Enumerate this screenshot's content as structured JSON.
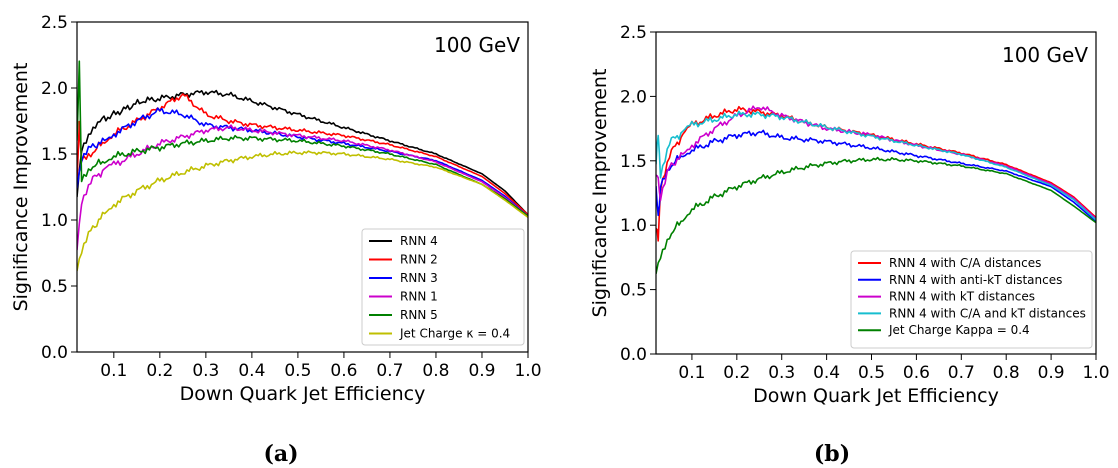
{
  "panels": [
    {
      "label": "(a)",
      "annotation": "100 GeV"
    },
    {
      "label": "(b)",
      "annotation": "100 GeV"
    }
  ],
  "chart_data": [
    {
      "type": "line",
      "annotation": "100 GeV",
      "xlabel": "Down Quark Jet Efficiency",
      "ylabel": "Significance Improvement",
      "xlim": [
        0.02,
        1.0
      ],
      "ylim": [
        0.0,
        2.5
      ],
      "xticks": [
        "0.1",
        "0.2",
        "0.3",
        "0.4",
        "0.5",
        "0.6",
        "0.7",
        "0.8",
        "0.9",
        "1.0"
      ],
      "yticks": [
        "0.0",
        "0.5",
        "1.0",
        "1.5",
        "2.0",
        "2.5"
      ],
      "grid": false,
      "legend_position": "lower-right",
      "series": [
        {
          "name": "RNN 4",
          "color": "#000000",
          "x": [
            0.02,
            0.03,
            0.05,
            0.07,
            0.1,
            0.13,
            0.16,
            0.2,
            0.25,
            0.3,
            0.35,
            0.4,
            0.5,
            0.6,
            0.7,
            0.8,
            0.9,
            0.95,
            1.0
          ],
          "y": [
            1.2,
            1.55,
            1.68,
            1.75,
            1.8,
            1.85,
            1.9,
            1.92,
            1.95,
            1.97,
            1.95,
            1.9,
            1.8,
            1.7,
            1.6,
            1.5,
            1.35,
            1.22,
            1.04
          ]
        },
        {
          "name": "RNN 2",
          "color": "#ff0000",
          "x": [
            0.02,
            0.025,
            0.03,
            0.05,
            0.08,
            0.1,
            0.15,
            0.2,
            0.25,
            0.3,
            0.35,
            0.4,
            0.5,
            0.6,
            0.7,
            0.8,
            0.9,
            0.95,
            1.0
          ],
          "y": [
            1.3,
            1.72,
            1.45,
            1.5,
            1.6,
            1.65,
            1.75,
            1.85,
            1.95,
            1.8,
            1.75,
            1.72,
            1.68,
            1.64,
            1.57,
            1.48,
            1.33,
            1.2,
            1.04
          ]
        },
        {
          "name": "RNN 3",
          "color": "#0000ff",
          "x": [
            0.02,
            0.03,
            0.05,
            0.08,
            0.1,
            0.15,
            0.2,
            0.25,
            0.3,
            0.4,
            0.5,
            0.6,
            0.7,
            0.8,
            0.9,
            0.95,
            1.0
          ],
          "y": [
            1.25,
            1.45,
            1.55,
            1.6,
            1.65,
            1.75,
            1.83,
            1.8,
            1.72,
            1.68,
            1.63,
            1.58,
            1.52,
            1.45,
            1.3,
            1.18,
            1.03
          ]
        },
        {
          "name": "RNN 1",
          "color": "#cc00cc",
          "x": [
            0.02,
            0.03,
            0.05,
            0.08,
            0.1,
            0.15,
            0.2,
            0.25,
            0.3,
            0.35,
            0.4,
            0.5,
            0.6,
            0.7,
            0.8,
            0.9,
            0.95,
            1.0
          ],
          "y": [
            0.8,
            1.15,
            1.3,
            1.38,
            1.42,
            1.5,
            1.58,
            1.63,
            1.68,
            1.7,
            1.68,
            1.64,
            1.6,
            1.53,
            1.44,
            1.29,
            1.17,
            1.03
          ]
        },
        {
          "name": "RNN 5",
          "color": "#008000",
          "x": [
            0.02,
            0.025,
            0.03,
            0.05,
            0.08,
            0.1,
            0.15,
            0.2,
            0.25,
            0.3,
            0.35,
            0.4,
            0.5,
            0.6,
            0.7,
            0.8,
            0.9,
            0.95,
            1.0
          ],
          "y": [
            1.6,
            2.18,
            1.3,
            1.4,
            1.45,
            1.48,
            1.52,
            1.55,
            1.58,
            1.6,
            1.62,
            1.62,
            1.6,
            1.56,
            1.5,
            1.42,
            1.27,
            1.16,
            1.03
          ]
        },
        {
          "name": "Jet Charge κ = 0.4",
          "color": "#bfbf00",
          "x": [
            0.02,
            0.03,
            0.05,
            0.08,
            0.1,
            0.15,
            0.2,
            0.25,
            0.3,
            0.35,
            0.4,
            0.45,
            0.5,
            0.55,
            0.6,
            0.7,
            0.8,
            0.9,
            0.95,
            1.0
          ],
          "y": [
            0.62,
            0.75,
            0.92,
            1.05,
            1.12,
            1.22,
            1.3,
            1.36,
            1.41,
            1.45,
            1.48,
            1.5,
            1.51,
            1.51,
            1.5,
            1.46,
            1.4,
            1.27,
            1.15,
            1.02
          ]
        }
      ]
    },
    {
      "type": "line",
      "annotation": "100 GeV",
      "xlabel": "Down Quark Jet Efficiency",
      "ylabel": "Significance Improvement",
      "xlim": [
        0.02,
        1.0
      ],
      "ylim": [
        0.0,
        2.5
      ],
      "xticks": [
        "0.1",
        "0.2",
        "0.3",
        "0.4",
        "0.5",
        "0.6",
        "0.7",
        "0.8",
        "0.9",
        "1.0"
      ],
      "yticks": [
        "0.0",
        "0.5",
        "1.0",
        "1.5",
        "2.0",
        "2.5"
      ],
      "grid": false,
      "legend_position": "lower-right",
      "series": [
        {
          "name": "RNN 4 with C/A distances",
          "color": "#ff0000",
          "x": [
            0.02,
            0.025,
            0.03,
            0.05,
            0.08,
            0.1,
            0.15,
            0.2,
            0.25,
            0.3,
            0.35,
            0.4,
            0.5,
            0.6,
            0.7,
            0.8,
            0.9,
            0.95,
            1.0
          ],
          "y": [
            1.0,
            0.88,
            1.3,
            1.55,
            1.7,
            1.78,
            1.85,
            1.9,
            1.88,
            1.85,
            1.8,
            1.76,
            1.7,
            1.63,
            1.56,
            1.47,
            1.33,
            1.22,
            1.06
          ]
        },
        {
          "name": "RNN 4 with anti-kT distances",
          "color": "#0000ff",
          "x": [
            0.02,
            0.025,
            0.03,
            0.05,
            0.08,
            0.1,
            0.15,
            0.2,
            0.25,
            0.3,
            0.4,
            0.5,
            0.6,
            0.7,
            0.8,
            0.9,
            0.95,
            1.0
          ],
          "y": [
            1.3,
            1.05,
            1.3,
            1.45,
            1.55,
            1.58,
            1.65,
            1.7,
            1.72,
            1.68,
            1.65,
            1.6,
            1.54,
            1.48,
            1.42,
            1.3,
            1.18,
            1.03
          ]
        },
        {
          "name": "RNN 4 with kT distances",
          "color": "#cc00cc",
          "x": [
            0.02,
            0.025,
            0.03,
            0.05,
            0.08,
            0.1,
            0.15,
            0.2,
            0.25,
            0.3,
            0.35,
            0.4,
            0.5,
            0.6,
            0.7,
            0.8,
            0.9,
            0.95,
            1.0
          ],
          "y": [
            1.4,
            1.35,
            1.2,
            1.45,
            1.55,
            1.62,
            1.75,
            1.85,
            1.92,
            1.85,
            1.8,
            1.75,
            1.7,
            1.62,
            1.55,
            1.46,
            1.32,
            1.21,
            1.05
          ]
        },
        {
          "name": "RNN 4 with C/A and kT distances",
          "color": "#17becf",
          "x": [
            0.02,
            0.025,
            0.03,
            0.05,
            0.08,
            0.1,
            0.15,
            0.2,
            0.25,
            0.3,
            0.35,
            0.4,
            0.5,
            0.6,
            0.7,
            0.8,
            0.9,
            0.95,
            1.0
          ],
          "y": [
            1.5,
            1.7,
            1.4,
            1.65,
            1.72,
            1.78,
            1.82,
            1.86,
            1.86,
            1.84,
            1.8,
            1.76,
            1.69,
            1.62,
            1.55,
            1.45,
            1.31,
            1.2,
            1.04
          ]
        },
        {
          "name": "Jet Charge Kappa = 0.4",
          "color": "#008000",
          "x": [
            0.02,
            0.03,
            0.05,
            0.08,
            0.1,
            0.15,
            0.2,
            0.25,
            0.3,
            0.35,
            0.4,
            0.45,
            0.5,
            0.55,
            0.6,
            0.7,
            0.8,
            0.9,
            0.95,
            1.0
          ],
          "y": [
            0.62,
            0.75,
            0.92,
            1.05,
            1.12,
            1.22,
            1.3,
            1.36,
            1.41,
            1.45,
            1.48,
            1.5,
            1.51,
            1.51,
            1.5,
            1.46,
            1.4,
            1.27,
            1.15,
            1.02
          ]
        }
      ]
    }
  ]
}
